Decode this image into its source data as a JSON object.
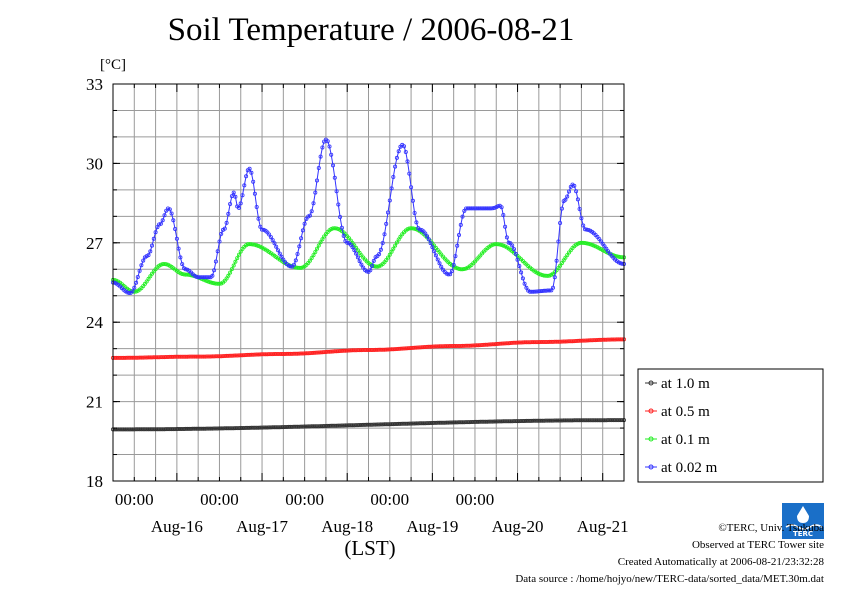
{
  "title": "Soil Temperature / 2006-08-21",
  "colors": {
    "grid": "#9a9a9a",
    "series_1m": "#333333",
    "series_05m": "#ff2020",
    "series_01m": "#22ee22",
    "series_002m": "#3333ff"
  },
  "chart_data": {
    "type": "line",
    "title": "Soil Temperature / 2006-08-21",
    "ylabel": "[°C]",
    "xlabel": "(LST)",
    "ylim": [
      18,
      33
    ],
    "yticks": [
      18,
      21,
      24,
      27,
      30,
      33
    ],
    "xlim_days": [
      0,
      6
    ],
    "x_start": "2006-08-15 18:00",
    "x_end": "2006-08-21 18:00",
    "x_time_ticks": [
      "00:00",
      "00:00",
      "00:00",
      "00:00",
      "00:00"
    ],
    "x_date_labels": [
      "Aug-16",
      "Aug-17",
      "Aug-18",
      "Aug-19",
      "Aug-20",
      "Aug-21"
    ],
    "grid": true,
    "legend_position": "right",
    "series": [
      {
        "name": "at 1.0 m",
        "color": "#333333",
        "x_days": [
          0,
          6
        ],
        "values": [
          19.95,
          20.3
        ]
      },
      {
        "name": "at 0.5 m",
        "color": "#ff2020",
        "x_days": [
          0,
          1,
          2,
          3,
          4,
          5,
          6
        ],
        "values": [
          22.65,
          22.7,
          22.8,
          22.95,
          23.1,
          23.25,
          23.35
        ]
      },
      {
        "name": "at 0.1 m",
        "color": "#22ee22",
        "x_days": [
          0,
          0.25,
          0.6,
          0.85,
          1.25,
          1.6,
          2.2,
          2.6,
          3.1,
          3.5,
          4.1,
          4.5,
          5.1,
          5.5,
          6
        ],
        "values": [
          25.6,
          25.15,
          26.2,
          25.8,
          25.45,
          26.95,
          26.05,
          27.55,
          26.1,
          27.55,
          26.0,
          26.95,
          25.75,
          27.0,
          26.45
        ]
      },
      {
        "name": "at 0.02 m",
        "color": "#3333ff",
        "x_days": [
          0,
          0.2,
          0.4,
          0.55,
          0.65,
          0.85,
          1.0,
          1.15,
          1.3,
          1.42,
          1.47,
          1.6,
          1.75,
          2.1,
          2.3,
          2.5,
          2.75,
          3.0,
          3.1,
          3.4,
          3.6,
          3.95,
          4.15,
          4.45,
          4.55,
          4.65,
          4.9,
          5.15,
          5.3,
          5.4,
          5.55,
          6.0
        ],
        "values": [
          25.5,
          25.1,
          26.5,
          27.7,
          28.3,
          26.0,
          25.7,
          25.7,
          27.5,
          28.9,
          28.3,
          29.8,
          27.5,
          26.1,
          28.0,
          30.9,
          27.0,
          25.9,
          26.5,
          30.7,
          27.5,
          25.8,
          28.3,
          28.3,
          28.4,
          27.0,
          25.15,
          25.2,
          28.6,
          29.2,
          27.5,
          26.2
        ]
      }
    ]
  },
  "footer": {
    "copyright": "©TERC, Univ. Tsukuba",
    "observed": "Observed at TERC Tower site",
    "created": "Created Automatically at 2006-08-21/23:32:28",
    "source": "Data source : /home/hojyo/new/TERC-data/sorted_data/MET.30m.dat",
    "logo_text": "TERC"
  }
}
